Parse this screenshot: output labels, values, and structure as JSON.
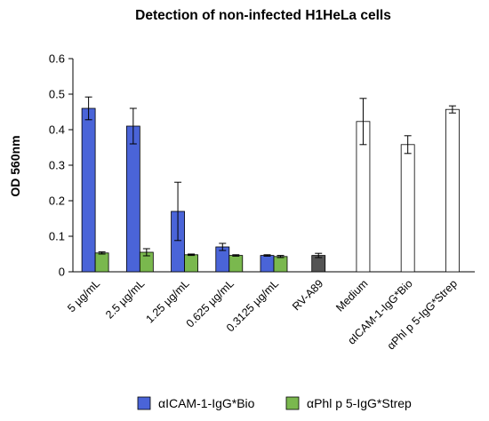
{
  "chart_data": {
    "type": "bar",
    "title": "Detection of non-infected H1HeLa cells",
    "xlabel": "",
    "ylabel": "OD 560nm",
    "ylim": [
      0,
      0.6
    ],
    "yticks": [
      "0",
      "0.1",
      "0.2",
      "0.3",
      "0.4",
      "0.5",
      "0.6"
    ],
    "grid": false,
    "legend_position": "bottom",
    "categories": [
      "5 µg/mL",
      "2.5 µg/mL",
      "1.25 µg/mL",
      "0.625 µg/mL",
      "0.3125 µg/mL",
      "RV-A89",
      "Medium",
      "αICAM-1-IgG*Bio",
      "αPhl p 5-IgG*Strep"
    ],
    "series": [
      {
        "name": "αICAM-1-IgG*Bio",
        "color": "#4a64d8",
        "values": [
          0.46,
          0.41,
          0.17,
          0.07,
          0.046,
          null,
          null,
          null,
          null
        ],
        "errors": [
          0.032,
          0.05,
          0.082,
          0.01,
          0.002,
          null,
          null,
          null,
          null
        ]
      },
      {
        "name": "αPhl p 5-IgG*Strep",
        "color": "#7ab84e",
        "values": [
          0.053,
          0.055,
          0.048,
          0.046,
          0.043,
          null,
          null,
          null,
          null
        ],
        "errors": [
          0.003,
          0.01,
          0.002,
          0.002,
          0.003,
          null,
          null,
          null,
          null
        ]
      },
      {
        "name": "",
        "color": "#545454",
        "values": [
          null,
          null,
          null,
          null,
          null,
          0.046,
          null,
          null,
          null
        ],
        "errors": [
          null,
          null,
          null,
          null,
          null,
          0.006,
          null,
          null,
          null
        ]
      },
      {
        "name": "",
        "color": "#ffffff",
        "values": [
          null,
          null,
          null,
          null,
          null,
          null,
          0.423,
          0.358,
          0.457
        ],
        "errors": [
          null,
          null,
          null,
          null,
          null,
          null,
          0.065,
          0.025,
          0.01
        ]
      }
    ]
  }
}
